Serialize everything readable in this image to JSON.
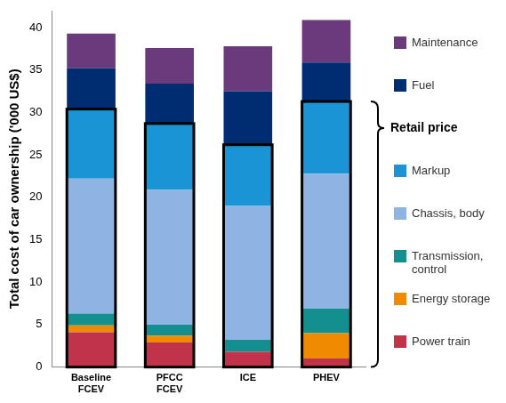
{
  "chart_data": {
    "type": "bar",
    "stacked": true,
    "categories": [
      "Baseline FCEV",
      "PFCC FCEV",
      "ICE",
      "PHEV"
    ],
    "series": [
      {
        "name": "Power train",
        "color": "#c0334a",
        "values": [
          4.1,
          2.9,
          1.8,
          1.0
        ]
      },
      {
        "name": "Energy storage",
        "color": "#f08a00",
        "values": [
          0.8,
          0.8,
          0,
          3.0
        ]
      },
      {
        "name": "Transmission, control",
        "color": "#138f8f",
        "values": [
          1.4,
          1.3,
          1.4,
          2.9
        ]
      },
      {
        "name": "Chassis, body",
        "color": "#8fb4e3",
        "values": [
          15.9,
          15.9,
          15.8,
          15.9
        ]
      },
      {
        "name": "Markup",
        "color": "#1a94d4",
        "values": [
          8.2,
          7.8,
          7.2,
          8.5
        ]
      },
      {
        "name": "Fuel",
        "color": "#002d72",
        "values": [
          4.8,
          4.7,
          6.3,
          4.6
        ]
      },
      {
        "name": "Maintenance",
        "color": "#6b3a7d",
        "values": [
          4.1,
          4.2,
          5.3,
          5.0
        ]
      }
    ],
    "y_label": "Total cost of car ownership ('000 US$)",
    "ylim": [
      0,
      42
    ],
    "yticks": [
      0,
      5,
      10,
      15,
      20,
      25,
      30,
      35,
      40
    ],
    "grid": false,
    "legend": "right",
    "annotations": [
      {
        "text": "Retail price",
        "series": [
          "Power train",
          "Energy storage",
          "Transmission, control",
          "Chassis, body",
          "Markup"
        ]
      }
    ]
  }
}
